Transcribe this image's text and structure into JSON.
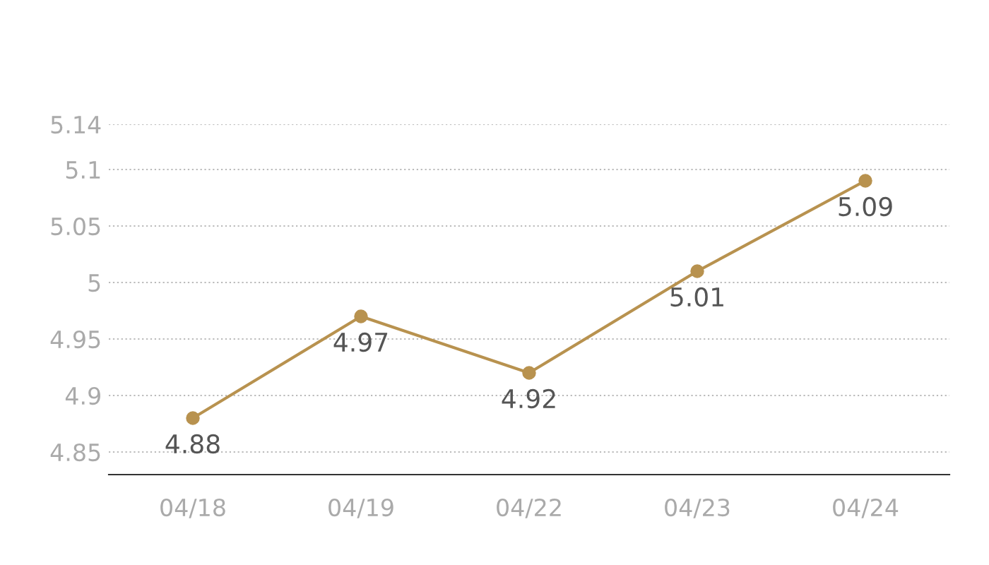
{
  "chart_data": {
    "type": "line",
    "categories": [
      "04/18",
      "04/19",
      "04/22",
      "04/23",
      "04/24"
    ],
    "series": [
      {
        "color": "#b8924f",
        "values": [
          4.88,
          4.97,
          4.92,
          5.01,
          5.09
        ]
      }
    ],
    "ylim": [
      4.83,
      5.14
    ],
    "yticks": [
      4.85,
      4.9,
      4.95,
      5,
      5.05,
      5.1,
      5.14
    ],
    "grid": "y",
    "marker": "circle",
    "line_style": "solid",
    "data_labels": true
  }
}
